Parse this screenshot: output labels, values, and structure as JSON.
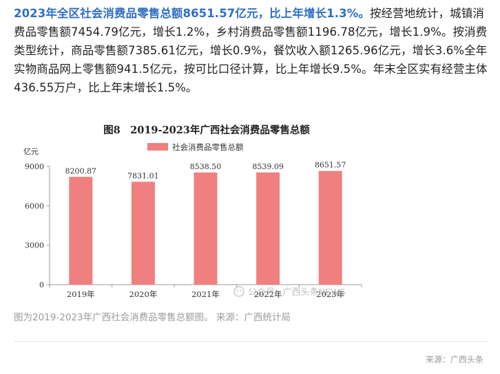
{
  "article": {
    "headline": "2023年全区社会消费品零售总额8651.57亿元，比上年增长1.3%。",
    "body": "按经营地统计，城镇消费品零售额7454.79亿元，增长1.2%，乡村消费品零售额1196.78亿元，增长1.9%。按消费类型统计，商品零售额7385.61亿元，增长0.9%，餐饮收入额1265.96亿元，增长3.6%全年实物商品网上零售额941.5亿元，按可比口径计算，比上年增长9.5%。年末全区实有经营主体436.55万户，比上年末增长1.5%。"
  },
  "chart_data": {
    "type": "bar",
    "title": "图8　2019-2023年广西社会消费品零售总额",
    "ylabel": "亿元",
    "categories": [
      "2019年",
      "2020年",
      "2021年",
      "2022年",
      "2023年"
    ],
    "series": [
      {
        "name": "社会消费品零售总额",
        "values": [
          8200.87,
          7831.01,
          8538.5,
          8539.09,
          8651.57
        ]
      }
    ],
    "data_labels": [
      "8200.87",
      "7831.01",
      "8538.50",
      "8539.09",
      "8651.57"
    ],
    "y_ticks": [
      "0",
      "3000",
      "6000",
      "9000"
    ],
    "ylim": [
      0,
      9000
    ],
    "bar_color": "#f08080",
    "legend_position": "top",
    "grid": false
  },
  "watermark": "公众号 · 广西头条NEWS",
  "caption": "图为2019-2023年广西社会消费品零售总额图。 来源：广西统计局",
  "footer": "来源：广西头条"
}
